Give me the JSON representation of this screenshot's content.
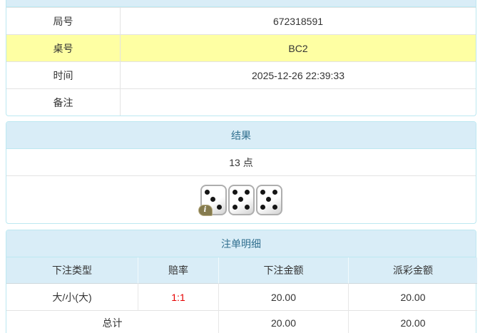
{
  "panels": {
    "info": {
      "rows": [
        {
          "label": "局号",
          "value": "672318591",
          "highlight": false
        },
        {
          "label": "桌号",
          "value": "BC2",
          "highlight": true
        },
        {
          "label": "时间",
          "value": "2025-12-26 22:39:33",
          "highlight": false
        },
        {
          "label": "备注",
          "value": "",
          "highlight": false
        }
      ]
    },
    "result": {
      "header": "结果",
      "points": "13 点",
      "dice": [
        3,
        5,
        5
      ],
      "info_badge": "i"
    },
    "bets": {
      "header": "注单明细",
      "columns": [
        "下注类型",
        "赔率",
        "下注金额",
        "派彩金额"
      ],
      "rows": [
        {
          "type": "大/小(大)",
          "odds": "1:1",
          "bet_amount": "20.00",
          "payout": "20.00"
        }
      ],
      "total": {
        "label": "总计",
        "bet_amount": "20.00",
        "payout": "20.00"
      }
    }
  },
  "colors": {
    "header_bg": "#d9edf7",
    "header_text": "#31708f",
    "panel_border": "#bce8f1",
    "row_divider": "#e3e3e3",
    "highlight_row": "#feffa3",
    "odds_red": "#e60000",
    "info_badge_bg": "#857b4e"
  }
}
